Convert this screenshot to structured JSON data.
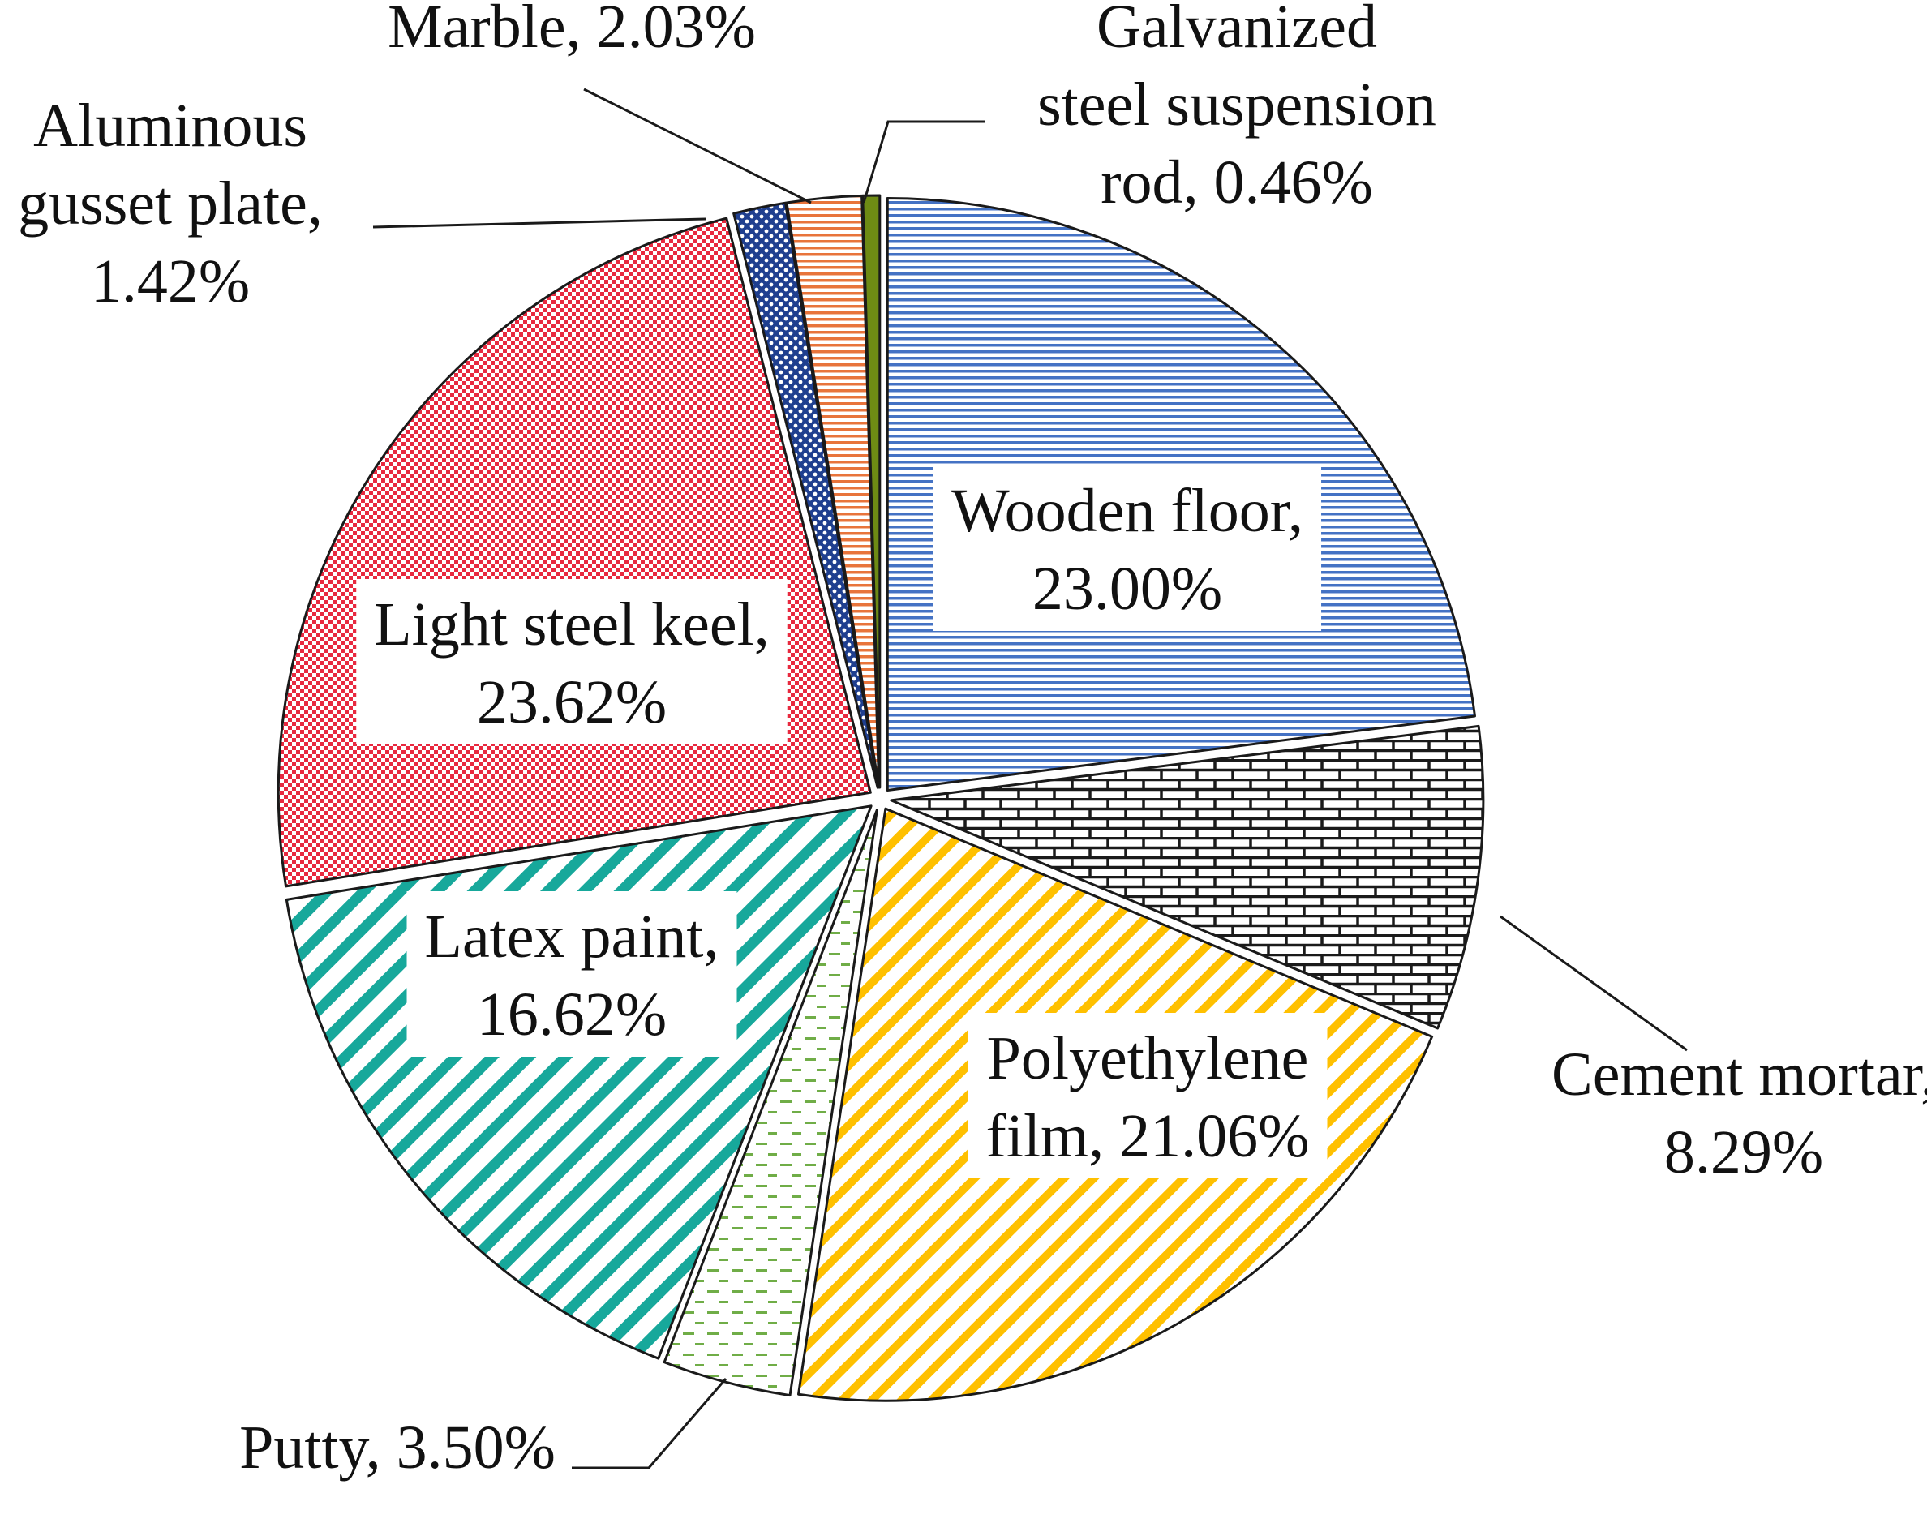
{
  "chart_data": {
    "type": "pie",
    "title": "",
    "start_angle_deg": 0,
    "direction": "clockwise",
    "exploded": true,
    "slices": [
      {
        "label": "Wooden floor",
        "value": 23.0,
        "display": "23.00%",
        "text_lines": [
          "Wooden floor,",
          "23.00%"
        ],
        "label_inside": true,
        "color": "#4472C4",
        "pattern": "horizontal-lines"
      },
      {
        "label": "Cement mortar",
        "value": 8.29,
        "display": "8.29%",
        "text_lines": [
          "Cement mortar,",
          "8.29%"
        ],
        "label_inside": false,
        "color": "#1A1A1A",
        "pattern": "bricks"
      },
      {
        "label": "Polyethylene film",
        "value": 21.06,
        "display": "21.06%",
        "text_lines": [
          "Polyethylene",
          "film, 21.06%"
        ],
        "label_inside": true,
        "color": "#FFC000",
        "pattern": "diagonal-stripes"
      },
      {
        "label": "Putty",
        "value": 3.5,
        "display": "3.50%",
        "text_lines": [
          "Putty, 3.50%"
        ],
        "label_inside": false,
        "color": "#70AD47",
        "pattern": "dashes"
      },
      {
        "label": "Latex paint",
        "value": 16.62,
        "display": "16.62%",
        "text_lines": [
          "Latex paint,",
          "16.62%"
        ],
        "label_inside": true,
        "color": "#17A89B",
        "pattern": "wide-diagonal-stripes"
      },
      {
        "label": "Light steel keel",
        "value": 23.62,
        "display": "23.62%",
        "text_lines": [
          "Light steel keel,",
          "23.62%"
        ],
        "label_inside": true,
        "color": "#E8293F",
        "pattern": "checker"
      },
      {
        "label": "Aluminous gusset plate",
        "value": 1.42,
        "display": "1.42%",
        "text_lines": [
          "Aluminous",
          "gusset plate,",
          "1.42%"
        ],
        "label_inside": false,
        "color": "#1F3F8F",
        "pattern": "dots"
      },
      {
        "label": "Marble",
        "value": 2.03,
        "display": "2.03%",
        "text_lines": [
          "Marble, 2.03%"
        ],
        "label_inside": false,
        "color": "#E8743B",
        "pattern": "horizontal-lines"
      },
      {
        "label": "Galvanized steel suspension rod",
        "value": 0.46,
        "display": "0.46%",
        "text_lines": [
          "Galvanized",
          "steel suspension",
          "rod, 0.46%"
        ],
        "label_inside": false,
        "color": "#6E8B14",
        "pattern": "solid"
      }
    ]
  }
}
